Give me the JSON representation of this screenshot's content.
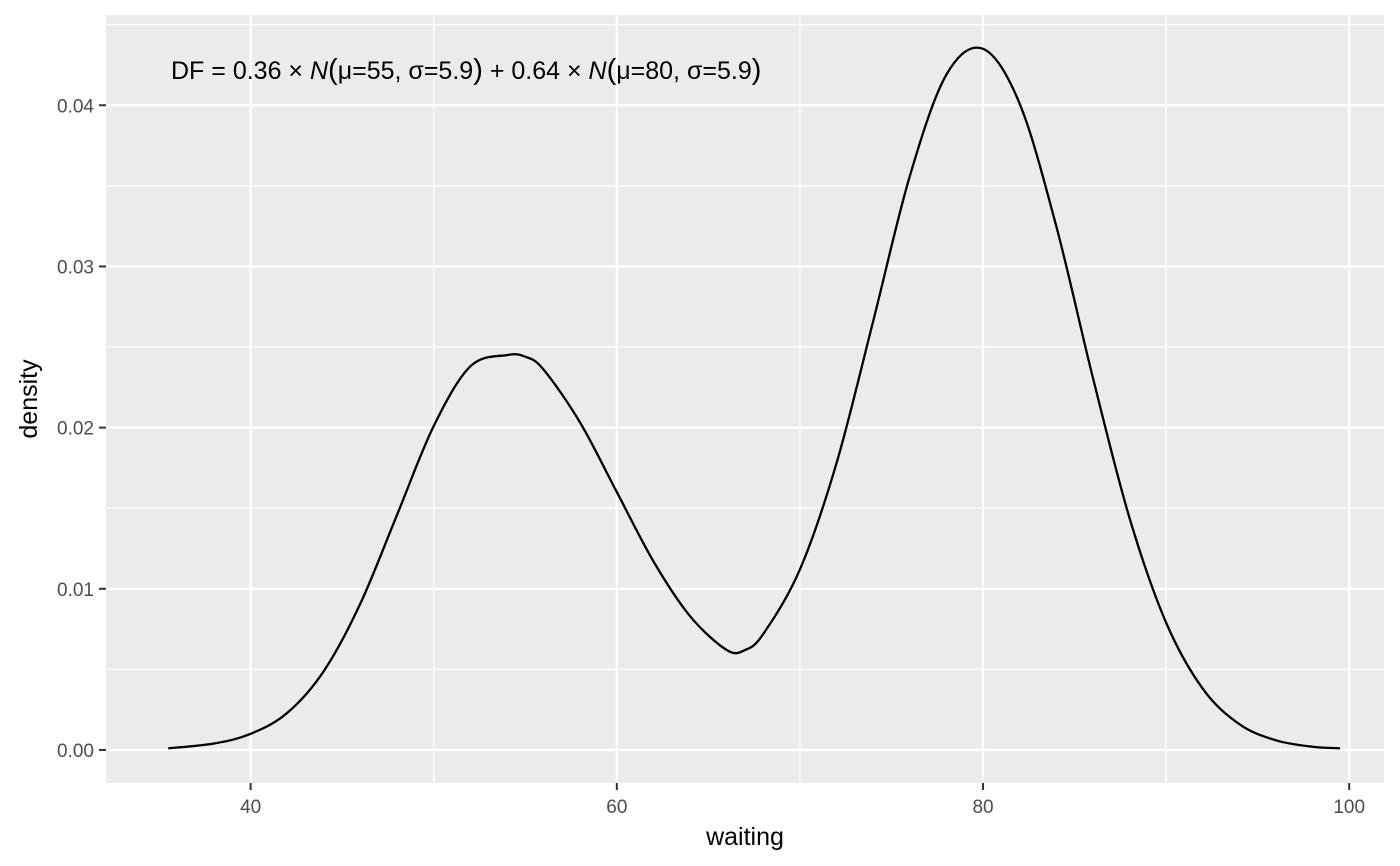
{
  "chart_data": {
    "type": "line",
    "title": "",
    "xlabel": "waiting",
    "ylabel": "density",
    "xlim": [
      32.1,
      101.9
    ],
    "ylim": [
      -0.00205,
      0.0456
    ],
    "x_ticks": [
      40,
      60,
      80,
      100
    ],
    "x_tick_labels": [
      "40",
      "60",
      "80",
      "100"
    ],
    "y_ticks": [
      0,
      0.01,
      0.02,
      0.03,
      0.04
    ],
    "y_tick_labels": [
      "0.00",
      "0.01",
      "0.02",
      "0.03",
      "0.04"
    ],
    "grid": true,
    "legend": "none",
    "annotation": {
      "prefix": "DF = 0.36 × ",
      "n1": "N",
      "open1": "(",
      "params1": "μ=55, σ=5.9",
      "close1": ")",
      "mid": " + 0.64 × ",
      "n2": "N",
      "open2": "(",
      "params2": "μ=80, σ=5.9",
      "close2": ")"
    },
    "series": [
      {
        "x": [
          35.5,
          38,
          40,
          42,
          44,
          46,
          48,
          50,
          52,
          54,
          55,
          56,
          58,
          60,
          62,
          64,
          66,
          67,
          68,
          70,
          72,
          74,
          76,
          78,
          80,
          82,
          84,
          86,
          88,
          90,
          92,
          94,
          96,
          98,
          99.5
        ],
        "y": [
          0.0001,
          0.0004,
          0.001,
          0.0023,
          0.0049,
          0.0091,
          0.0146,
          0.0201,
          0.0238,
          0.0245,
          0.0244,
          0.0236,
          0.0203,
          0.016,
          0.0117,
          0.0083,
          0.0062,
          0.0062,
          0.0072,
          0.0112,
          0.0178,
          0.0266,
          0.0356,
          0.0419,
          0.0435,
          0.0401,
          0.0325,
          0.0231,
          0.0144,
          0.0079,
          0.0038,
          0.0016,
          0.0006,
          0.0002,
          0.0001
        ],
        "color": "#000000"
      }
    ]
  },
  "colors": {
    "panel_bg": "#ebebeb",
    "grid_major": "#ffffff",
    "tick_text": "#4d4d4d",
    "line": "#000000"
  }
}
